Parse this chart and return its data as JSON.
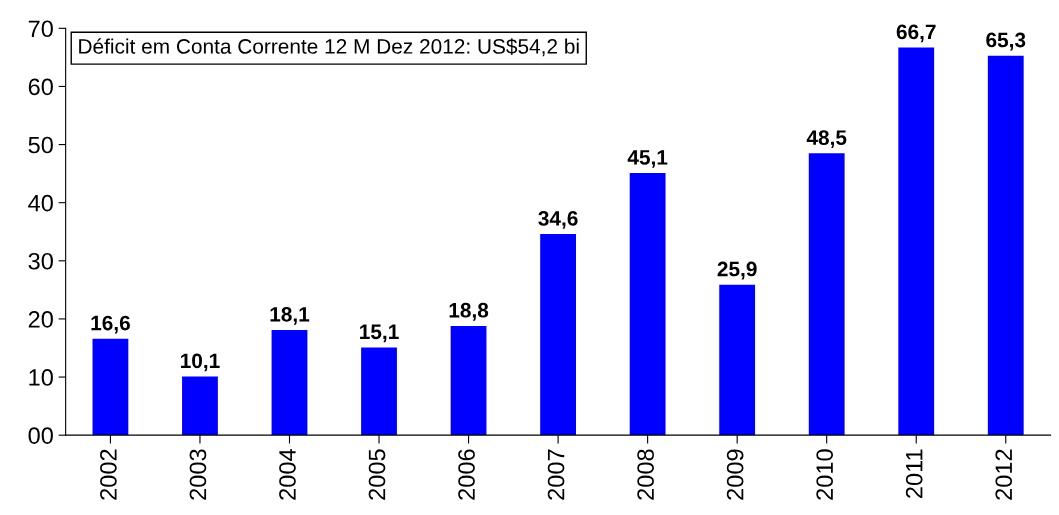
{
  "chart_data": {
    "type": "bar",
    "categories": [
      "2002",
      "2003",
      "2004",
      "2005",
      "2006",
      "2007",
      "2008",
      "2009",
      "2010",
      "2011",
      "2012"
    ],
    "values": [
      16.6,
      10.1,
      18.1,
      15.1,
      18.8,
      34.6,
      45.1,
      25.9,
      48.5,
      66.7,
      65.3
    ],
    "value_labels": [
      "16,6",
      "10,1",
      "18,1",
      "15,1",
      "18,8",
      "34,6",
      "45,1",
      "25,9",
      "48,5",
      "66,7",
      "65,3"
    ],
    "color": "#0000ff",
    "ylim": [
      0,
      70
    ],
    "yticks": [
      {
        "value": 0,
        "label": "00"
      },
      10,
      20,
      30,
      40,
      50,
      60,
      70
    ],
    "grid": false,
    "annotations": [
      "Déficit em Conta Corrente 12 M Dez 2012: US$54,2 bi"
    ]
  }
}
